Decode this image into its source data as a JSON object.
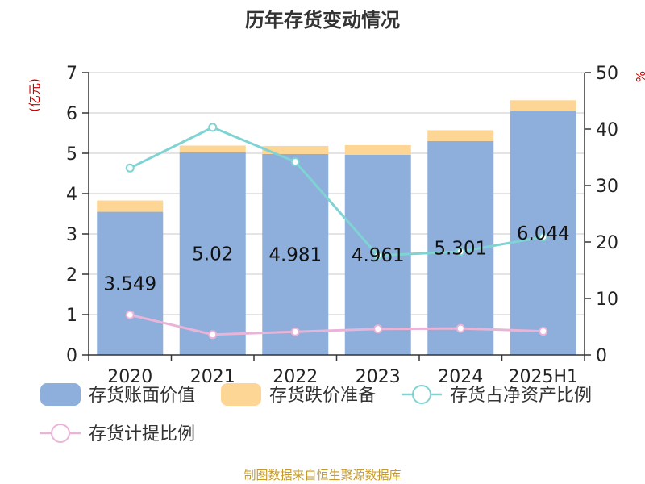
{
  "chart_data": {
    "type": "bar",
    "title": "历年存货变动情况",
    "left_axis_unit": "(亿元)",
    "right_axis_unit": "%",
    "categories": [
      "2020",
      "2021",
      "2022",
      "2023",
      "2024",
      "2025H1"
    ],
    "ylim_left": [
      0,
      7
    ],
    "yticks_left": [
      "0",
      "1",
      "2",
      "3",
      "4",
      "5",
      "6",
      "7"
    ],
    "ylim_right": [
      0,
      50
    ],
    "yticks_right": [
      "0",
      "10",
      "20",
      "30",
      "40",
      "50"
    ],
    "grid": true,
    "legend_position": "bottom",
    "series": [
      {
        "name": "存货账面价值",
        "kind": "bar",
        "axis": "left",
        "color": "#8eaedb",
        "values": [
          3.549,
          5.02,
          4.981,
          4.961,
          5.301,
          6.044
        ],
        "labels": [
          "3.549",
          "5.02",
          "4.981",
          "4.961",
          "5.301",
          "6.044"
        ]
      },
      {
        "name": "存货跌价准备",
        "kind": "bar",
        "axis": "left",
        "color": "#fdd594",
        "values": [
          0.28,
          0.17,
          0.2,
          0.24,
          0.27,
          0.27
        ]
      },
      {
        "name": "存货占净资产比例",
        "kind": "line",
        "axis": "right",
        "color": "#7fd3d3",
        "values": [
          33.1,
          40.3,
          34.2,
          17.6,
          18.3,
          20.9
        ]
      },
      {
        "name": "存货计提比例",
        "kind": "line",
        "axis": "right",
        "color": "#e8b4d8",
        "values": [
          7.1,
          3.6,
          4.1,
          4.6,
          4.7,
          4.2
        ]
      }
    ],
    "source": "制图数据来自恒生聚源数据库"
  }
}
